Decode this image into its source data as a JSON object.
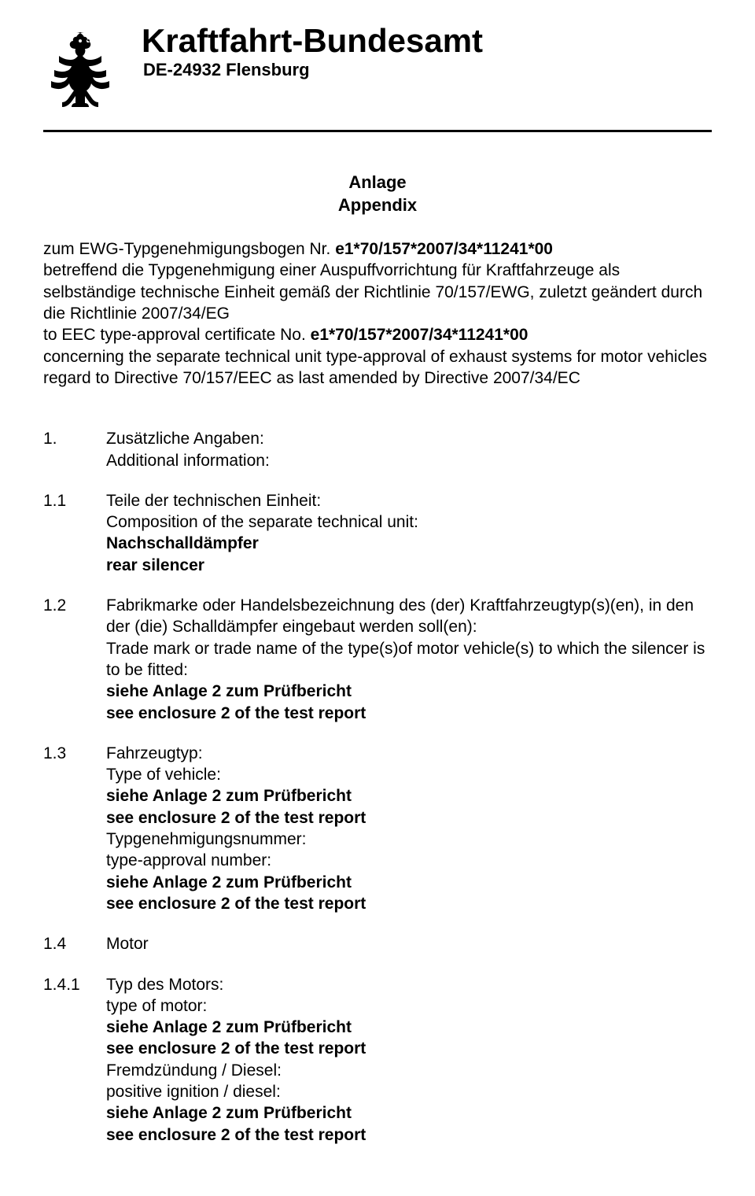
{
  "header": {
    "org_name": "Kraftfahrt-Bundesamt",
    "org_sub": "DE-24932 Flensburg"
  },
  "appendix": {
    "line1": "Anlage",
    "line2": "Appendix"
  },
  "intro": {
    "de_prefix": "zum EWG-Typgenehmigungsbogen Nr. ",
    "number": "e1*70/157*2007/34*11241*00",
    "de_body": "betreffend die Typgenehmigung einer Auspuffvorrichtung für Kraftfahrzeuge als selbständige technische Einheit gemäß der Richtlinie 70/157/EWG, zuletzt geändert durch die Richtlinie 2007/34/EG",
    "en_prefix": "to EEC type-approval certificate No. ",
    "en_number": "e1*70/157*2007/34*11241*00",
    "en_body": "concerning the separate technical unit type-approval of exhaust systems for motor vehicles regard to Directive 70/157/EEC as last amended by Directive 2007/34/EC"
  },
  "items": [
    {
      "num": "1.",
      "lines": [
        {
          "t": "Zusätzliche Angaben:",
          "b": false
        },
        {
          "t": "Additional information:",
          "b": false
        }
      ]
    },
    {
      "num": "1.1",
      "lines": [
        {
          "t": "Teile der technischen Einheit:",
          "b": false
        },
        {
          "t": "Composition of the separate technical unit:",
          "b": false
        },
        {
          "t": "Nachschalldämpfer",
          "b": true
        },
        {
          "t": "rear silencer",
          "b": true
        }
      ]
    },
    {
      "num": "1.2",
      "lines": [
        {
          "t": "Fabrikmarke oder Handelsbezeichnung des (der) Kraftfahrzeugtyp(s)(en), in den der (die) Schalldämpfer eingebaut werden soll(en):",
          "b": false
        },
        {
          "t": "Trade mark or trade name of the type(s)of motor vehicle(s) to which the silencer is to be fitted:",
          "b": false
        },
        {
          "t": "siehe Anlage 2 zum Prüfbericht",
          "b": true
        },
        {
          "t": "see enclosure 2 of the test report",
          "b": true
        }
      ]
    },
    {
      "num": "1.3",
      "lines": [
        {
          "t": "Fahrzeugtyp:",
          "b": false
        },
        {
          "t": "Type of vehicle:",
          "b": false
        },
        {
          "t": "siehe Anlage 2 zum Prüfbericht",
          "b": true
        },
        {
          "t": "see enclosure 2 of the test report",
          "b": true
        },
        {
          "t": "Typgenehmigungsnummer:",
          "b": false
        },
        {
          "t": "type-approval number:",
          "b": false
        },
        {
          "t": "siehe Anlage 2 zum Prüfbericht",
          "b": true
        },
        {
          "t": "see enclosure 2 of the test report",
          "b": true
        }
      ]
    },
    {
      "num": "1.4",
      "lines": [
        {
          "t": "Motor",
          "b": false
        }
      ]
    },
    {
      "num": "1.4.1",
      "lines": [
        {
          "t": "Typ des Motors:",
          "b": false
        },
        {
          "t": "type of motor:",
          "b": false
        },
        {
          "t": "siehe Anlage 2 zum Prüfbericht",
          "b": true
        },
        {
          "t": "see enclosure 2 of the test report",
          "b": true
        },
        {
          "t": "Fremdzündung / Diesel:",
          "b": false
        },
        {
          "t": "positive ignition / diesel:",
          "b": false
        },
        {
          "t": "siehe Anlage 2 zum Prüfbericht",
          "b": true
        },
        {
          "t": "see enclosure 2 of the test report",
          "b": true
        }
      ]
    }
  ]
}
